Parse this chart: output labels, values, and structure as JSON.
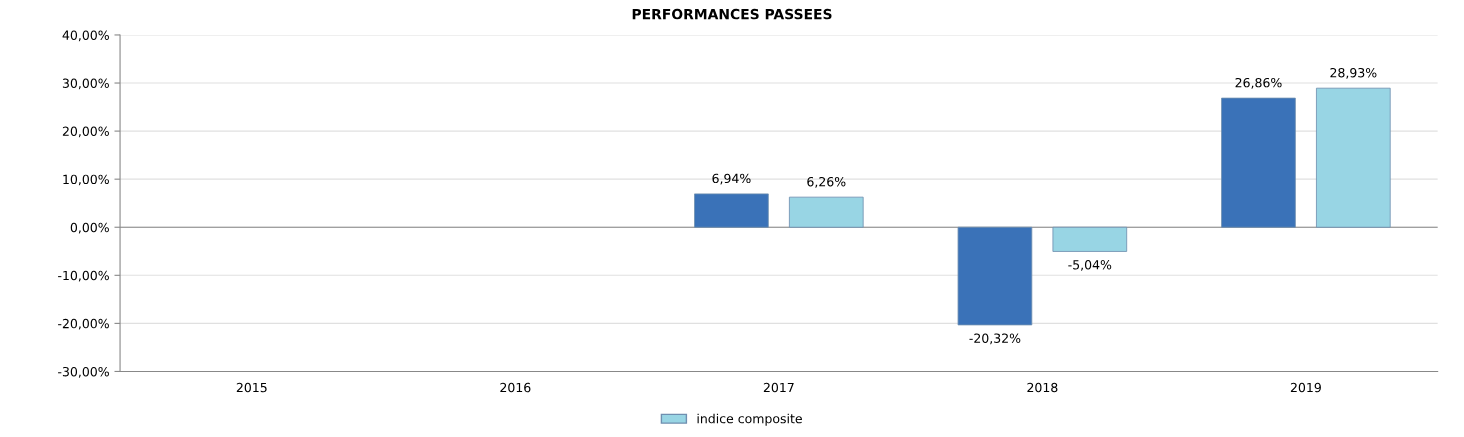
{
  "chart_data": {
    "type": "bar",
    "title": "PERFORMANCES PASSEES",
    "categories": [
      "2015",
      "2016",
      "2017",
      "2018",
      "2019"
    ],
    "series": [
      {
        "color": "#3a72b8",
        "values": [
          null,
          null,
          6.94,
          -20.32,
          26.86
        ],
        "value_labels": [
          null,
          null,
          "6,94%",
          "-20,32%",
          "26,86%"
        ]
      },
      {
        "name": "indice composite",
        "color": "#98d5e4",
        "values": [
          null,
          null,
          6.26,
          -5.04,
          28.93
        ],
        "value_labels": [
          null,
          null,
          "6,26%",
          "-5,04%",
          "28,93%"
        ]
      }
    ],
    "ylim": [
      -30,
      40
    ],
    "yticks": [
      {
        "value": -30,
        "label": "-30,00%"
      },
      {
        "value": -20,
        "label": "-20,00%"
      },
      {
        "value": -10,
        "label": "-10,00%"
      },
      {
        "value": 0,
        "label": "0,00%"
      },
      {
        "value": 10,
        "label": "10,00%"
      },
      {
        "value": 20,
        "label": "20,00%"
      },
      {
        "value": 30,
        "label": "30,00%"
      },
      {
        "value": 40,
        "label": "40,00%"
      }
    ],
    "grid": "y",
    "legend": "bottom"
  }
}
